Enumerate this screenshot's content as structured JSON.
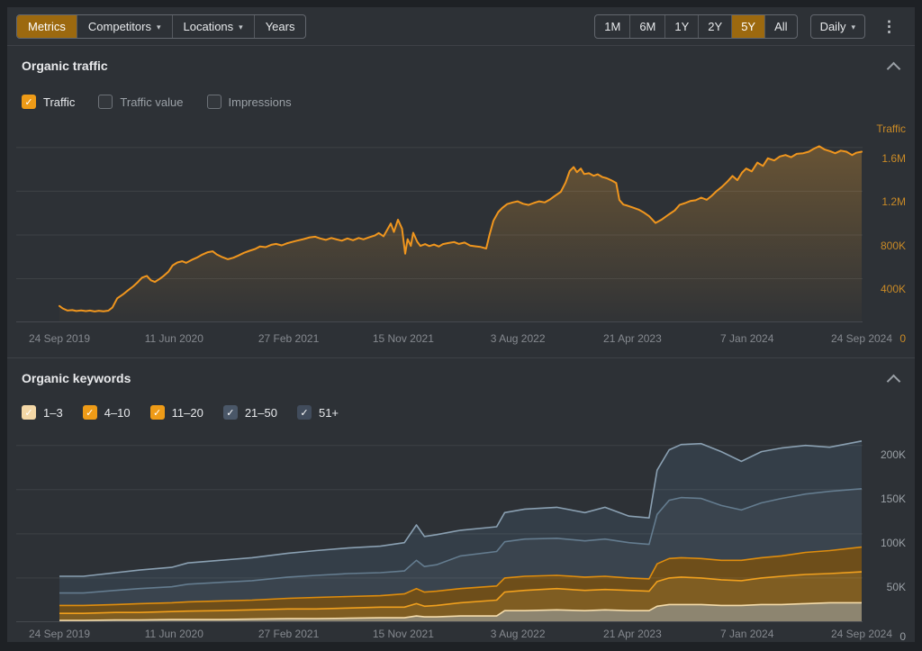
{
  "toolbar": {
    "nav": [
      {
        "label": "Metrics",
        "active": true,
        "caret": false
      },
      {
        "label": "Competitors",
        "active": false,
        "caret": true
      },
      {
        "label": "Locations",
        "active": false,
        "caret": true
      },
      {
        "label": "Years",
        "active": false,
        "caret": false
      }
    ],
    "ranges": [
      {
        "label": "1M",
        "active": false
      },
      {
        "label": "6M",
        "active": false
      },
      {
        "label": "1Y",
        "active": false
      },
      {
        "label": "2Y",
        "active": false
      },
      {
        "label": "5Y",
        "active": true
      },
      {
        "label": "All",
        "active": false
      }
    ],
    "granularity": {
      "label": "Daily",
      "caret": true
    },
    "kebab_icon": "⋮",
    "active_bg": "#9c690f"
  },
  "traffic_section": {
    "title": "Organic traffic",
    "checkboxes": [
      {
        "label": "Traffic",
        "checked": true,
        "box_color": "#ee9b17"
      },
      {
        "label": "Traffic value",
        "checked": false,
        "box_color": ""
      },
      {
        "label": "Impressions",
        "checked": false,
        "box_color": ""
      }
    ]
  },
  "keywords_section": {
    "title": "Organic keywords",
    "checkboxes": [
      {
        "label": "1–3",
        "checked": true,
        "box_color": "#f3d7a6"
      },
      {
        "label": "4–10",
        "checked": true,
        "box_color": "#ee9b17"
      },
      {
        "label": "11–20",
        "checked": true,
        "box_color": "#ee9b17"
      },
      {
        "label": "21–50",
        "checked": true,
        "box_color": "#4a5768"
      },
      {
        "label": "51+",
        "checked": true,
        "box_color": "#414c5c"
      }
    ]
  },
  "chart_data": [
    {
      "type": "area",
      "title": "Organic traffic",
      "axis_title": "Traffic",
      "values_unit": "thousands",
      "x_labels": [
        "24 Sep 2019",
        "11 Jun 2020",
        "27 Feb 2021",
        "15 Nov 2021",
        "3 Aug 2022",
        "21 Apr 2023",
        "7 Jan 2024",
        "24 Sep 2024"
      ],
      "yticks": [
        {
          "value": 1600,
          "label": "1.6M"
        },
        {
          "value": 1200,
          "label": "1.2M"
        },
        {
          "value": 800,
          "label": "800K"
        },
        {
          "value": 400,
          "label": "400K"
        }
      ],
      "zero_label": "0",
      "ymax_k": 1830,
      "line_color": "#f0961e",
      "fill_color": "#e09a32",
      "label_color": "#c98a26",
      "series": [
        {
          "name": "Traffic",
          "points": [
            [
              0,
              150
            ],
            [
              0.004,
              128
            ],
            [
              0.01,
              108
            ],
            [
              0.016,
              112
            ],
            [
              0.021,
              104
            ],
            [
              0.027,
              110
            ],
            [
              0.033,
              103
            ],
            [
              0.038,
              108
            ],
            [
              0.044,
              100
            ],
            [
              0.049,
              106
            ],
            [
              0.055,
              101
            ],
            [
              0.061,
              107
            ],
            [
              0.066,
              135
            ],
            [
              0.072,
              220
            ],
            [
              0.079,
              255
            ],
            [
              0.085,
              290
            ],
            [
              0.092,
              330
            ],
            [
              0.098,
              370
            ],
            [
              0.103,
              410
            ],
            [
              0.109,
              425
            ],
            [
              0.114,
              385
            ],
            [
              0.119,
              370
            ],
            [
              0.125,
              398
            ],
            [
              0.13,
              425
            ],
            [
              0.136,
              465
            ],
            [
              0.141,
              520
            ],
            [
              0.147,
              548
            ],
            [
              0.153,
              560
            ],
            [
              0.158,
              545
            ],
            [
              0.165,
              572
            ],
            [
              0.172,
              595
            ],
            [
              0.178,
              620
            ],
            [
              0.185,
              642
            ],
            [
              0.191,
              650
            ],
            [
              0.196,
              622
            ],
            [
              0.203,
              597
            ],
            [
              0.21,
              578
            ],
            [
              0.217,
              592
            ],
            [
              0.223,
              612
            ],
            [
              0.23,
              636
            ],
            [
              0.237,
              655
            ],
            [
              0.244,
              672
            ],
            [
              0.25,
              695
            ],
            [
              0.257,
              688
            ],
            [
              0.264,
              710
            ],
            [
              0.27,
              718
            ],
            [
              0.277,
              705
            ],
            [
              0.283,
              722
            ],
            [
              0.29,
              736
            ],
            [
              0.296,
              748
            ],
            [
              0.304,
              762
            ],
            [
              0.312,
              778
            ],
            [
              0.319,
              784
            ],
            [
              0.325,
              768
            ],
            [
              0.332,
              755
            ],
            [
              0.339,
              772
            ],
            [
              0.346,
              758
            ],
            [
              0.352,
              748
            ],
            [
              0.359,
              768
            ],
            [
              0.366,
              752
            ],
            [
              0.373,
              772
            ],
            [
              0.379,
              760
            ],
            [
              0.386,
              778
            ],
            [
              0.393,
              795
            ],
            [
              0.398,
              818
            ],
            [
              0.404,
              788
            ],
            [
              0.409,
              852
            ],
            [
              0.413,
              905
            ],
            [
              0.417,
              828
            ],
            [
              0.422,
              940
            ],
            [
              0.427,
              858
            ],
            [
              0.431,
              628
            ],
            [
              0.434,
              762
            ],
            [
              0.438,
              700
            ],
            [
              0.441,
              820
            ],
            [
              0.446,
              738
            ],
            [
              0.45,
              700
            ],
            [
              0.456,
              716
            ],
            [
              0.461,
              698
            ],
            [
              0.467,
              712
            ],
            [
              0.473,
              694
            ],
            [
              0.478,
              716
            ],
            [
              0.485,
              726
            ],
            [
              0.492,
              735
            ],
            [
              0.498,
              718
            ],
            [
              0.505,
              730
            ],
            [
              0.512,
              703
            ],
            [
              0.519,
              696
            ],
            [
              0.525,
              690
            ],
            [
              0.532,
              676
            ],
            [
              0.536,
              800
            ],
            [
              0.541,
              930
            ],
            [
              0.547,
              1010
            ],
            [
              0.552,
              1048
            ],
            [
              0.558,
              1082
            ],
            [
              0.565,
              1098
            ],
            [
              0.571,
              1108
            ],
            [
              0.578,
              1086
            ],
            [
              0.585,
              1075
            ],
            [
              0.591,
              1092
            ],
            [
              0.598,
              1108
            ],
            [
              0.605,
              1098
            ],
            [
              0.612,
              1128
            ],
            [
              0.618,
              1160
            ],
            [
              0.625,
              1195
            ],
            [
              0.631,
              1280
            ],
            [
              0.636,
              1385
            ],
            [
              0.641,
              1422
            ],
            [
              0.645,
              1375
            ],
            [
              0.65,
              1408
            ],
            [
              0.654,
              1358
            ],
            [
              0.66,
              1365
            ],
            [
              0.666,
              1342
            ],
            [
              0.671,
              1355
            ],
            [
              0.677,
              1330
            ],
            [
              0.682,
              1320
            ],
            [
              0.688,
              1300
            ],
            [
              0.694,
              1275
            ],
            [
              0.698,
              1120
            ],
            [
              0.703,
              1078
            ],
            [
              0.708,
              1068
            ],
            [
              0.715,
              1050
            ],
            [
              0.722,
              1032
            ],
            [
              0.728,
              1008
            ],
            [
              0.735,
              972
            ],
            [
              0.743,
              910
            ],
            [
              0.751,
              942
            ],
            [
              0.759,
              985
            ],
            [
              0.767,
              1025
            ],
            [
              0.773,
              1075
            ],
            [
              0.78,
              1092
            ],
            [
              0.787,
              1112
            ],
            [
              0.793,
              1118
            ],
            [
              0.8,
              1142
            ],
            [
              0.807,
              1122
            ],
            [
              0.813,
              1158
            ],
            [
              0.819,
              1200
            ],
            [
              0.826,
              1242
            ],
            [
              0.833,
              1292
            ],
            [
              0.839,
              1340
            ],
            [
              0.845,
              1302
            ],
            [
              0.851,
              1372
            ],
            [
              0.856,
              1408
            ],
            [
              0.863,
              1382
            ],
            [
              0.87,
              1462
            ],
            [
              0.877,
              1432
            ],
            [
              0.883,
              1502
            ],
            [
              0.891,
              1482
            ],
            [
              0.898,
              1518
            ],
            [
              0.905,
              1532
            ],
            [
              0.912,
              1512
            ],
            [
              0.919,
              1542
            ],
            [
              0.927,
              1548
            ],
            [
              0.934,
              1562
            ],
            [
              0.94,
              1588
            ],
            [
              0.947,
              1612
            ],
            [
              0.954,
              1582
            ],
            [
              0.961,
              1565
            ],
            [
              0.967,
              1548
            ],
            [
              0.974,
              1572
            ],
            [
              0.981,
              1562
            ],
            [
              0.988,
              1532
            ],
            [
              0.993,
              1552
            ],
            [
              1,
              1562
            ]
          ]
        }
      ]
    },
    {
      "type": "stacked-area",
      "title": "Organic keywords",
      "values_unit": "thousands",
      "x_labels": [
        "24 Sep 2019",
        "11 Jun 2020",
        "27 Feb 2021",
        "15 Nov 2021",
        "3 Aug 2022",
        "21 Apr 2023",
        "7 Jan 2024",
        "24 Sep 2024"
      ],
      "yticks": [
        {
          "value": 200,
          "label": "200K"
        },
        {
          "value": 150,
          "label": "150K"
        },
        {
          "value": 100,
          "label": "100K"
        },
        {
          "value": 50,
          "label": "50K"
        }
      ],
      "zero_label": "0",
      "ymax_k": 216,
      "label_color": "#9aa0a6",
      "t": [
        0,
        0.03,
        0.07,
        0.1,
        0.14,
        0.16,
        0.2,
        0.24,
        0.285,
        0.32,
        0.36,
        0.4,
        0.43,
        0.445,
        0.455,
        0.47,
        0.5,
        0.545,
        0.555,
        0.58,
        0.62,
        0.655,
        0.68,
        0.71,
        0.735,
        0.745,
        0.76,
        0.775,
        0.8,
        0.825,
        0.85,
        0.875,
        0.9,
        0.93,
        0.96,
        1.0
      ],
      "series": [
        {
          "name": "1–3",
          "line": "#f5dcaa",
          "fill": "#8d8570",
          "values": [
            2,
            2,
            2.5,
            2.5,
            3,
            3,
            3,
            3.5,
            4,
            4,
            4.5,
            5,
            5,
            7,
            6,
            6,
            7,
            7,
            13,
            13,
            14,
            13,
            14,
            13,
            13,
            18,
            20,
            20,
            20,
            19,
            19,
            20,
            20,
            21,
            22,
            22
          ]
        },
        {
          "name": "4–10",
          "line": "#f0a01e",
          "fill": "#7f5d22",
          "values": [
            8,
            8,
            8.5,
            8.5,
            9,
            9.5,
            10,
            10.5,
            11,
            11,
            11.5,
            12,
            12,
            14,
            12,
            13,
            15,
            18,
            21,
            23,
            24,
            23,
            23,
            23,
            22,
            28,
            30,
            31,
            30,
            29,
            28,
            30,
            32,
            33,
            33,
            35
          ]
        },
        {
          "name": "11–20",
          "line": "#df8d0d",
          "fill": "#6e4e1a",
          "values": [
            9,
            9,
            9,
            10,
            10,
            10.5,
            11,
            11,
            12,
            13,
            13,
            13,
            15,
            17,
            16,
            16,
            16,
            16,
            16,
            16,
            15,
            15,
            15,
            14,
            14,
            20,
            22,
            22,
            22,
            22,
            23,
            23,
            23,
            25,
            26,
            28
          ]
        },
        {
          "name": "21–50",
          "line": "#647c8f",
          "fill": "#3a444e",
          "values": [
            14,
            14,
            16,
            17,
            18,
            20,
            21,
            22,
            24,
            25,
            26,
            26,
            26,
            32,
            29,
            30,
            37,
            39,
            41,
            42,
            42,
            41,
            42,
            40,
            39,
            56,
            66,
            68,
            68,
            62,
            57,
            62,
            65,
            66,
            67,
            66
          ]
        },
        {
          "name": "51+",
          "line": "#8aa0b2",
          "fill": "#343e48",
          "values": [
            19,
            19,
            20,
            21,
            22,
            24,
            25,
            26,
            27,
            28,
            29,
            30,
            32,
            40,
            34,
            34,
            29,
            28,
            33,
            34,
            35,
            32,
            36,
            30,
            30,
            50,
            57,
            60,
            62,
            61,
            55,
            58,
            57,
            55,
            50,
            54
          ]
        }
      ]
    }
  ]
}
